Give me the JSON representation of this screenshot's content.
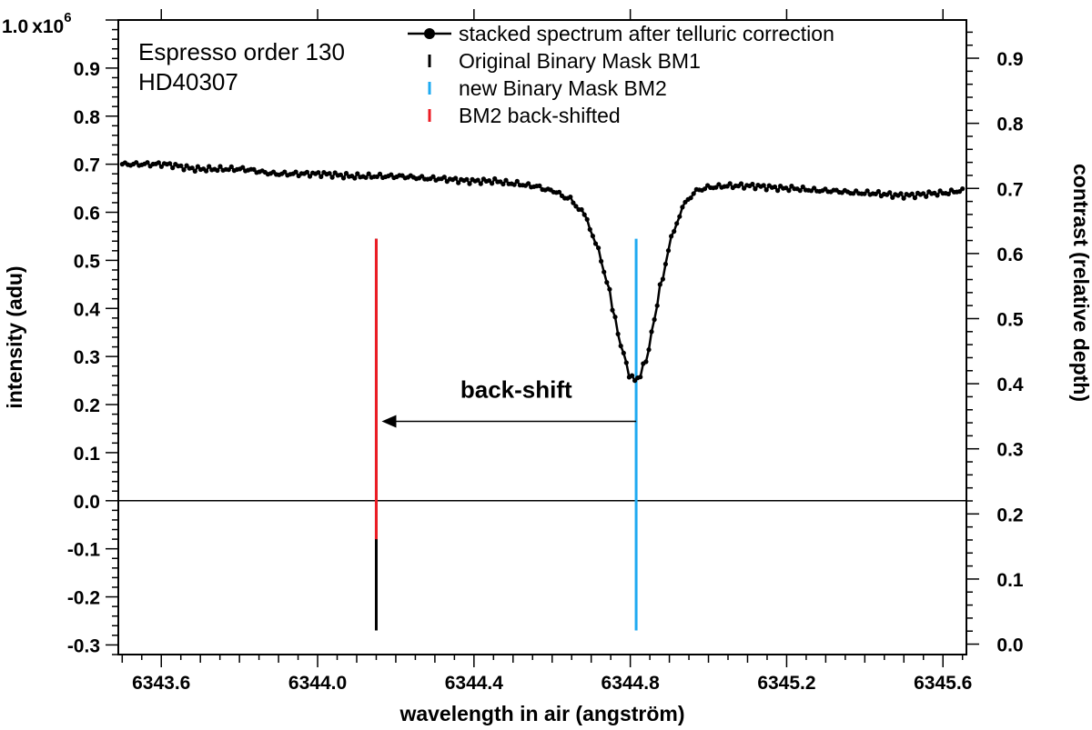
{
  "chart_data": {
    "type": "line",
    "xlabel": "wavelength in air (angström)",
    "ylabel": "intensity (adu)",
    "y2label": "contrast (relative depth)",
    "xlim": [
      6343.49,
      6345.66
    ],
    "ylim": [
      -0.32,
      1.0
    ],
    "y_multiplier_label": "x10",
    "y_multiplier_exp": "6",
    "y2lim": [
      -0.016,
      0.9587
    ],
    "x_ticks": [
      6343.6,
      6344.0,
      6344.4,
      6344.8,
      6345.2,
      6345.6
    ],
    "x_tick_labels": [
      "6343.6",
      "6344.0",
      "6344.4",
      "6344.8",
      "6345.2",
      "6345.6"
    ],
    "y_ticks": [
      -0.3,
      -0.2,
      -0.1,
      0.0,
      0.1,
      0.2,
      0.3,
      0.4,
      0.5,
      0.6,
      0.7,
      0.8,
      0.9,
      1.0
    ],
    "y_tick_labels": [
      "-0.3",
      "-0.2",
      "-0.1",
      "0.0",
      "0.1",
      "0.2",
      "0.3",
      "0.4",
      "0.5",
      "0.6",
      "0.7",
      "0.8",
      "0.9",
      "1.0"
    ],
    "y2_ticks": [
      0.0,
      0.1,
      0.2,
      0.3,
      0.4,
      0.5,
      0.6,
      0.7,
      0.8,
      0.9
    ],
    "y2_tick_labels": [
      "0.0",
      "0.1",
      "0.2",
      "0.3",
      "0.4",
      "0.5",
      "0.6",
      "0.7",
      "0.8",
      "0.9"
    ],
    "grid": false,
    "legend_position": "top-right",
    "series": [
      {
        "name": "stacked spectrum after telluric correction",
        "color": "#000000",
        "type": "line-markers",
        "x": [
          6343.5,
          6343.6,
          6343.7,
          6343.8,
          6343.9,
          6344.0,
          6344.1,
          6344.2,
          6344.3,
          6344.4,
          6344.45,
          6344.5,
          6344.55,
          6344.6,
          6344.64,
          6344.68,
          6344.71,
          6344.74,
          6344.76,
          6344.78,
          6344.8,
          6344.81,
          6344.82,
          6344.84,
          6344.86,
          6344.88,
          6344.91,
          6344.94,
          6344.97,
          6345.0,
          6345.05,
          6345.1,
          6345.2,
          6345.3,
          6345.4,
          6345.5,
          6345.6,
          6345.65
        ],
        "y": [
          0.7,
          0.7,
          0.69,
          0.69,
          0.68,
          0.68,
          0.675,
          0.675,
          0.67,
          0.665,
          0.665,
          0.66,
          0.655,
          0.645,
          0.63,
          0.6,
          0.54,
          0.46,
          0.38,
          0.31,
          0.26,
          0.25,
          0.255,
          0.29,
          0.37,
          0.46,
          0.56,
          0.62,
          0.645,
          0.652,
          0.655,
          0.655,
          0.65,
          0.645,
          0.64,
          0.635,
          0.64,
          0.645
        ]
      },
      {
        "name": "Original Binary Mask BM1",
        "color": "#000000",
        "type": "vline",
        "x": [
          6344.15
        ],
        "y": [
          -0.27
        ],
        "y_end": [
          0.545
        ]
      },
      {
        "name": "new Binary Mask BM2",
        "color": "#1eaaf1",
        "type": "vline",
        "x": [
          6344.815
        ],
        "y": [
          -0.27
        ],
        "y_end": [
          0.545
        ]
      },
      {
        "name": " BM2 back-shifted",
        "color": "#ec1c24",
        "type": "vline",
        "x": [
          6344.15
        ],
        "y": [
          -0.08
        ],
        "y_end": [
          0.545
        ]
      }
    ],
    "zero_line_y": 0.0,
    "annotations": [
      {
        "text": "back-shift",
        "x_from": 6344.815,
        "x_to": 6344.15,
        "y": 0.165
      }
    ],
    "corner_text": [
      "Espresso order 130",
      "HD40307"
    ]
  }
}
